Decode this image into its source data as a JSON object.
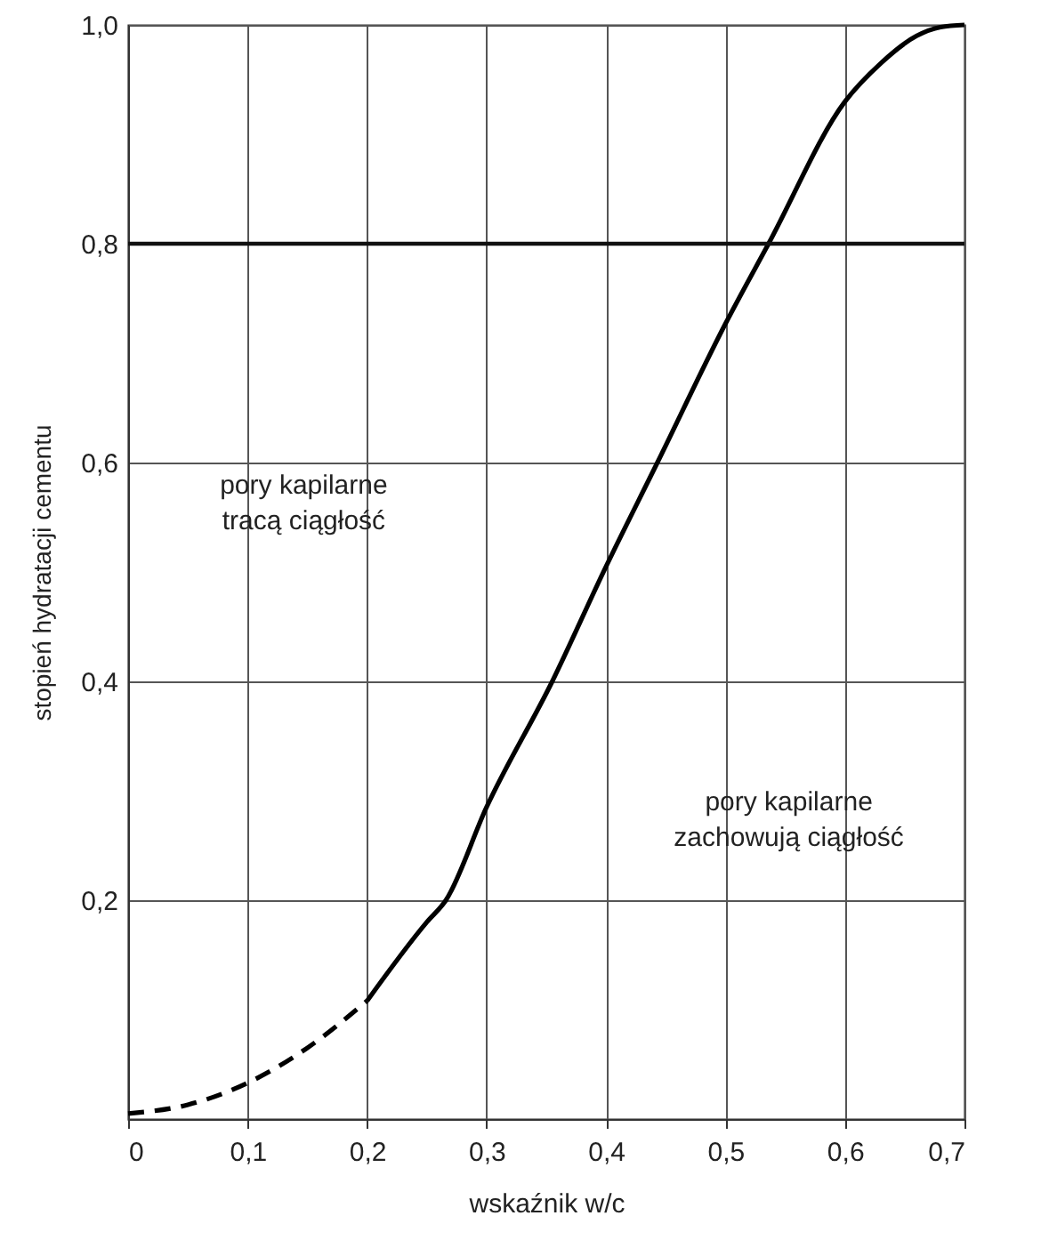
{
  "chart_data": {
    "type": "line",
    "xlabel": "wskaźnik w/c",
    "ylabel": "stopień hydratacji cementu",
    "xlim": [
      0,
      0.7
    ],
    "ylim": [
      0,
      1
    ],
    "xticks": [
      0,
      {
        "value": 0.1,
        "label": "0,1"
      },
      {
        "value": 0.2,
        "label": "0,2"
      },
      {
        "value": 0.3,
        "label": "0,3"
      },
      {
        "value": 0.4,
        "label": "0,4"
      },
      {
        "value": 0.5,
        "label": "0,5"
      },
      {
        "value": 0.6,
        "label": "0,6"
      },
      {
        "value": 0.7,
        "label": "0,7"
      }
    ],
    "yticks": [
      {
        "value": 0.2,
        "label": "0,2"
      },
      {
        "value": 0.4,
        "label": "0,4"
      },
      {
        "value": 0.6,
        "label": "0,6"
      },
      {
        "value": 0.8,
        "label": "0,8"
      },
      {
        "value": 1,
        "label": "1,0"
      }
    ],
    "grid": true,
    "series": [
      {
        "color": "#000000",
        "line_style": "dashed",
        "x": [
          0,
          0.05,
          0.1,
          0.15,
          0.2
        ],
        "values": [
          0.005,
          0.013,
          0.033,
          0.065,
          0.108
        ]
      },
      {
        "color": "#000000",
        "line_style": "solid",
        "x": [
          0.2,
          0.25,
          0.266,
          0.3,
          0.355,
          0.4,
          0.443,
          0.5,
          0.536,
          0.6,
          0.63,
          0.66,
          0.68,
          0.7
        ],
        "values": [
          0.108,
          0.18,
          0.2,
          0.285,
          0.4,
          0.505,
          0.6,
          0.727,
          0.8,
          0.93,
          0.965,
          0.99,
          0.998,
          1
        ]
      }
    ],
    "ref_lines": [
      {
        "axis": "y",
        "value": 0.8
      }
    ],
    "annotations": [
      "pory kapilarne\ntracą ciągłość",
      "pory kapilarne\nzachowują ciągłość"
    ]
  }
}
